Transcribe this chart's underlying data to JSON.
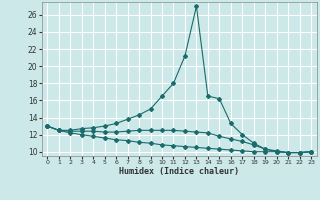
{
  "xlabel": "Humidex (Indice chaleur)",
  "background_color": "#cce8e8",
  "grid_color": "#aad4d4",
  "line_color": "#1a6b6b",
  "x_values": [
    0,
    1,
    2,
    3,
    4,
    5,
    6,
    7,
    8,
    9,
    10,
    11,
    12,
    13,
    14,
    15,
    16,
    17,
    18,
    19,
    20,
    21,
    22,
    23
  ],
  "series_peak": [
    13.0,
    12.5,
    12.5,
    12.7,
    12.8,
    13.0,
    13.3,
    13.8,
    14.3,
    15.0,
    16.5,
    18.0,
    21.2,
    27.0,
    16.5,
    16.2,
    13.3,
    12.0,
    11.0,
    10.3,
    10.1,
    9.9,
    9.9,
    10.0
  ],
  "series_mid": [
    13.0,
    12.5,
    12.4,
    12.4,
    12.4,
    12.3,
    12.3,
    12.4,
    12.5,
    12.5,
    12.5,
    12.5,
    12.4,
    12.3,
    12.2,
    11.8,
    11.5,
    11.2,
    10.8,
    10.3,
    10.0,
    9.9,
    9.9,
    10.0
  ],
  "series_low": [
    13.0,
    12.5,
    12.2,
    12.0,
    11.8,
    11.6,
    11.4,
    11.3,
    11.1,
    11.0,
    10.8,
    10.7,
    10.6,
    10.5,
    10.4,
    10.3,
    10.2,
    10.1,
    10.0,
    10.0,
    10.0,
    9.9,
    9.9,
    10.0
  ],
  "ylim": [
    9.5,
    27.5
  ],
  "yticks": [
    10,
    12,
    14,
    16,
    18,
    20,
    22,
    24,
    26
  ]
}
